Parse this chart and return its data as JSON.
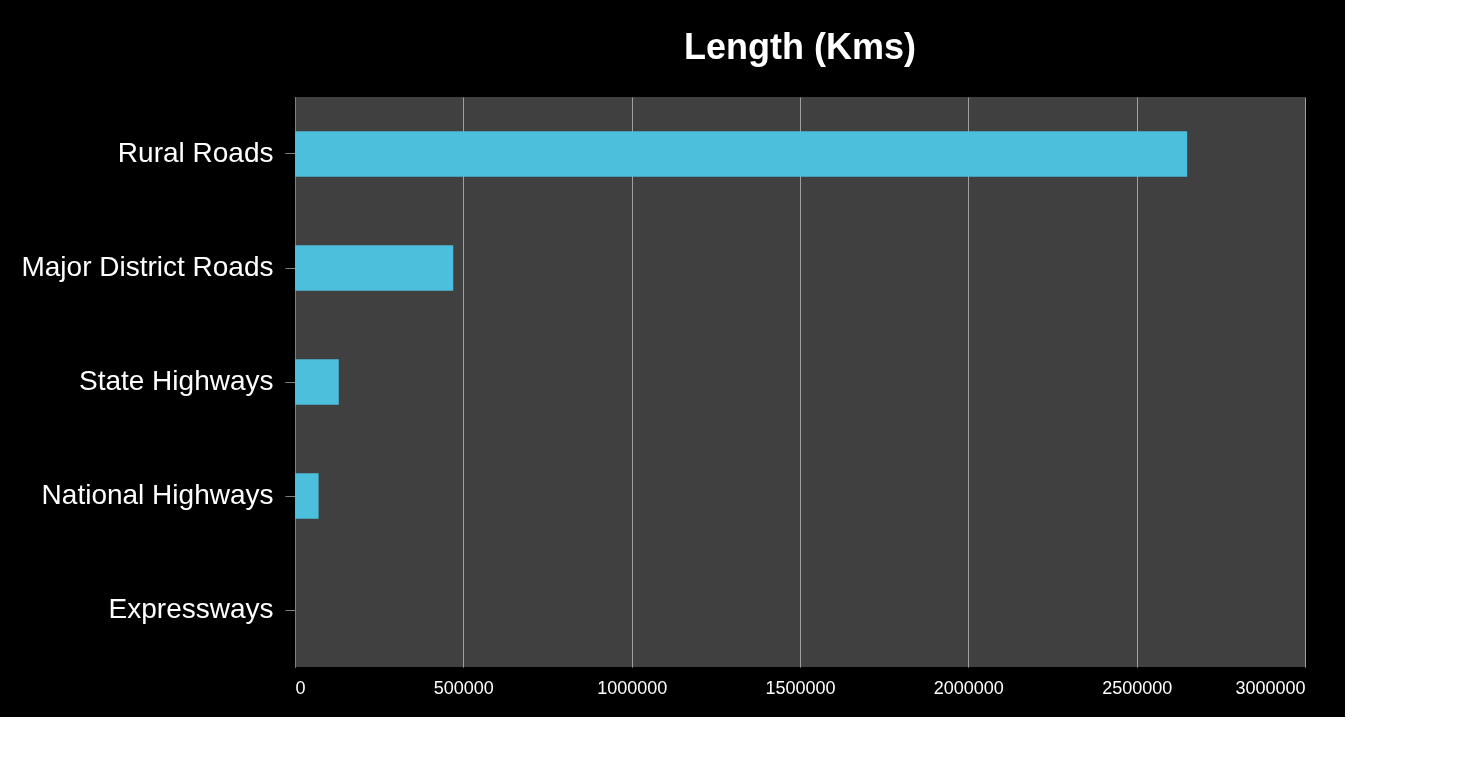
{
  "chart_data": {
    "type": "bar",
    "orientation": "horizontal",
    "title": "Length (Kms)",
    "categories": [
      "Rural Roads",
      "Major District Roads",
      "State Highways",
      "National Highways",
      "Expressways"
    ],
    "values": [
      2650000,
      470000,
      130000,
      70000,
      0
    ],
    "color": "#4bbfdc",
    "xlim": [
      0,
      3000000
    ],
    "xticks": [
      0,
      500000,
      1000000,
      1500000,
      2000000,
      2500000,
      3000000
    ],
    "grid": "x"
  }
}
